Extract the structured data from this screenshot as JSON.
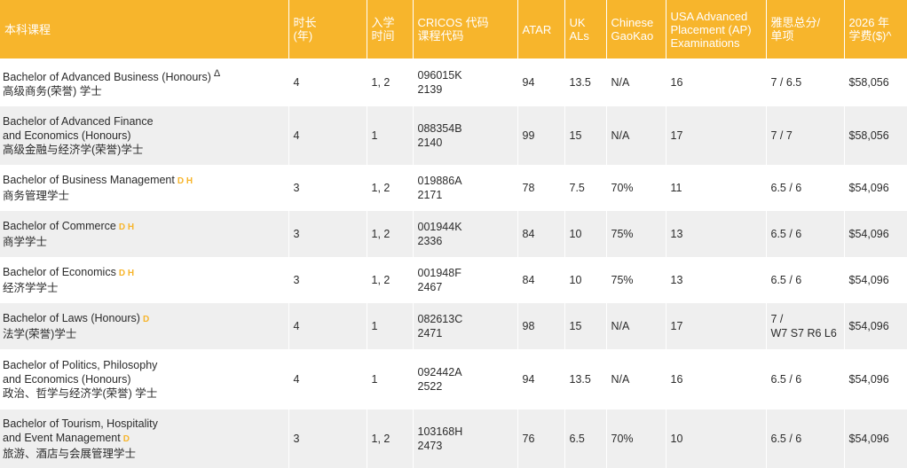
{
  "headers": [
    [
      "本科课程"
    ],
    [
      "时长",
      "(年)"
    ],
    [
      "入学",
      "时间"
    ],
    [
      "CRICOS 代码",
      "课程代码"
    ],
    [
      "ATAR"
    ],
    [
      "UK",
      "ALs"
    ],
    [
      "Chinese",
      "GaoKao"
    ],
    [
      "USA Advanced",
      "Placement (AP)",
      "Examinations"
    ],
    [
      "雅思总分/",
      "单项"
    ],
    [
      "2026 年",
      "学费($)^"
    ]
  ],
  "rows": [
    {
      "course": [
        "Bachelor of Advanced Business (Honours)"
      ],
      "mark": "Δ",
      "mark_type": "delta",
      "chinese": "高级商务(荣誉) 学士",
      "duration": "4",
      "intake": "1, 2",
      "cricos": "096015K",
      "code": "2139",
      "atar": "94",
      "ukals": "13.5",
      "gaokao": "N/A",
      "ap": "16",
      "ielts": [
        "7 / 6.5"
      ],
      "fee": "$58,056"
    },
    {
      "course": [
        "Bachelor of Advanced Finance",
        "and Economics (Honours)"
      ],
      "mark": "",
      "mark_type": "",
      "chinese": "高级金融与经济学(荣誉)学士",
      "duration": "4",
      "intake": "1",
      "cricos": "088354B",
      "code": "2140",
      "atar": "99",
      "ukals": "15",
      "gaokao": "N/A",
      "ap": "17",
      "ielts": [
        "7 / 7"
      ],
      "fee": "$58,056"
    },
    {
      "course": [
        "Bachelor of Business Management"
      ],
      "mark": "D H",
      "mark_type": "dh",
      "chinese": "商务管理学士",
      "duration": "3",
      "intake": "1, 2",
      "cricos": "019886A",
      "code": "2171",
      "atar": "78",
      "ukals": "7.5",
      "gaokao": "70%",
      "ap": "11",
      "ielts": [
        "6.5 / 6"
      ],
      "fee": "$54,096"
    },
    {
      "course": [
        "Bachelor of Commerce"
      ],
      "mark": "D H",
      "mark_type": "dh",
      "chinese": "商学学士",
      "duration": "3",
      "intake": "1, 2",
      "cricos": "001944K",
      "code": "2336",
      "atar": "84",
      "ukals": "10",
      "gaokao": "75%",
      "ap": "13",
      "ielts": [
        "6.5 / 6"
      ],
      "fee": "$54,096"
    },
    {
      "course": [
        "Bachelor of Economics"
      ],
      "mark": "D H",
      "mark_type": "dh",
      "chinese": "经济学学士",
      "duration": "3",
      "intake": "1, 2",
      "cricos": "001948F",
      "code": "2467",
      "atar": "84",
      "ukals": "10",
      "gaokao": "75%",
      "ap": "13",
      "ielts": [
        "6.5 / 6"
      ],
      "fee": "$54,096"
    },
    {
      "course": [
        "Bachelor of Laws (Honours)"
      ],
      "mark": "D",
      "mark_type": "dh",
      "chinese": "法学(荣誉)学士",
      "duration": "4",
      "intake": "1",
      "cricos": "082613C",
      "code": "2471",
      "atar": "98",
      "ukals": "15",
      "gaokao": "N/A",
      "ap": "17",
      "ielts": [
        "7 /",
        "W7 S7 R6 L6"
      ],
      "fee": "$54,096"
    },
    {
      "course": [
        "Bachelor of Politics, Philosophy",
        "and Economics (Honours)"
      ],
      "mark": "",
      "mark_type": "",
      "chinese": "政治、哲学与经济学(荣誉) 学士",
      "duration": "4",
      "intake": "1",
      "cricos": "092442A",
      "code": "2522",
      "atar": "94",
      "ukals": "13.5",
      "gaokao": "N/A",
      "ap": "16",
      "ielts": [
        "6.5 / 6"
      ],
      "fee": "$54,096"
    },
    {
      "course": [
        "Bachelor of Tourism, Hospitality",
        "and Event Management"
      ],
      "mark": "D",
      "mark_type": "dh",
      "chinese": "旅游、酒店与会展管理学士",
      "duration": "3",
      "intake": "1, 2",
      "cricos": "103168H",
      "code": "2473",
      "atar": "76",
      "ukals": "6.5",
      "gaokao": "70%",
      "ap": "10",
      "ielts": [
        "6.5 / 6"
      ],
      "fee": "$54,096"
    }
  ],
  "colors": {
    "header_bg": "#f7b52c",
    "stripe": "#efefef",
    "mark": "#f7b52c"
  }
}
